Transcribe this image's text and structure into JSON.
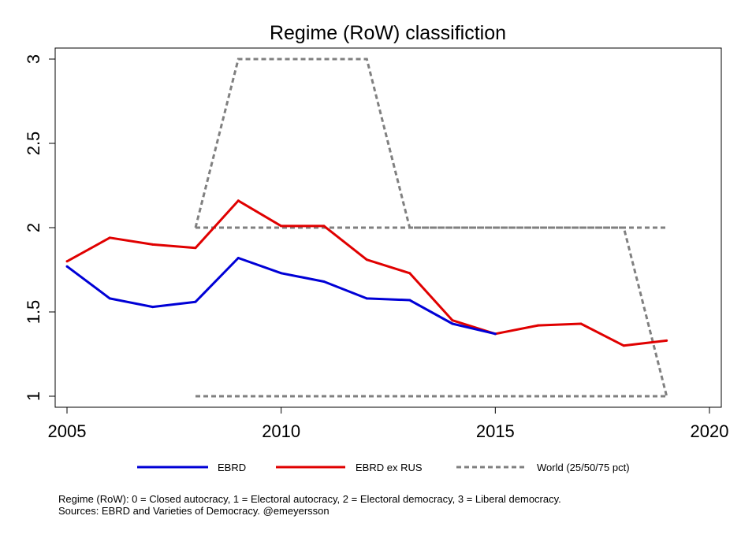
{
  "chart_data": {
    "type": "line",
    "title": "Regime (RoW) classifiction",
    "xlabel": "",
    "ylabel": "",
    "xlim": [
      2005,
      2020
    ],
    "ylim": [
      1,
      3
    ],
    "x_ticks": [
      "2005",
      "2010",
      "2015",
      "2020"
    ],
    "y_ticks": [
      "1",
      "1.5",
      "2",
      "2.5",
      "3"
    ],
    "x": [
      2005,
      2006,
      2007,
      2008,
      2009,
      2010,
      2011,
      2012,
      2013,
      2014,
      2015,
      2016,
      2017,
      2018,
      2019
    ],
    "series": [
      {
        "name": "EBRD",
        "color": "#0000d6",
        "style": "solid",
        "values": [
          1.77,
          1.58,
          1.53,
          1.56,
          1.82,
          1.73,
          1.68,
          1.58,
          1.57,
          1.43,
          1.37,
          null,
          null,
          null,
          null
        ]
      },
      {
        "name": "EBRD ex RUS",
        "color": "#e00000",
        "style": "solid",
        "values": [
          1.8,
          1.94,
          1.9,
          1.88,
          2.16,
          2.01,
          2.01,
          1.81,
          1.73,
          1.45,
          1.37,
          1.42,
          1.43,
          1.3,
          1.33
        ]
      },
      {
        "name": "World (25/50/75 pct)",
        "color": "#808080",
        "style": "dashed",
        "values": [
          null,
          null,
          null,
          null,
          null,
          null,
          null,
          null,
          null,
          null,
          null,
          null,
          null,
          null,
          null
        ]
      }
    ],
    "world_percentiles": {
      "p25": [
        null,
        null,
        null,
        1,
        1,
        1,
        1,
        1,
        1,
        1,
        1,
        1,
        1,
        1,
        1
      ],
      "p50": [
        null,
        null,
        null,
        2,
        2,
        2,
        2,
        2,
        2,
        2,
        2,
        2,
        2,
        2,
        2
      ],
      "p75": [
        null,
        null,
        null,
        2,
        3,
        3,
        3,
        3,
        2,
        2,
        2,
        2,
        2,
        2,
        1
      ]
    },
    "grid": false,
    "legend_position": "bottom"
  },
  "notes": [
    "Regime (RoW): 0 = Closed autocracy, 1 = Electoral autocracy, 2 = Electoral democracy, 3 = Liberal democracy.",
    "Sources: EBRD and Varieties of Democracy. @emeyersson"
  ]
}
